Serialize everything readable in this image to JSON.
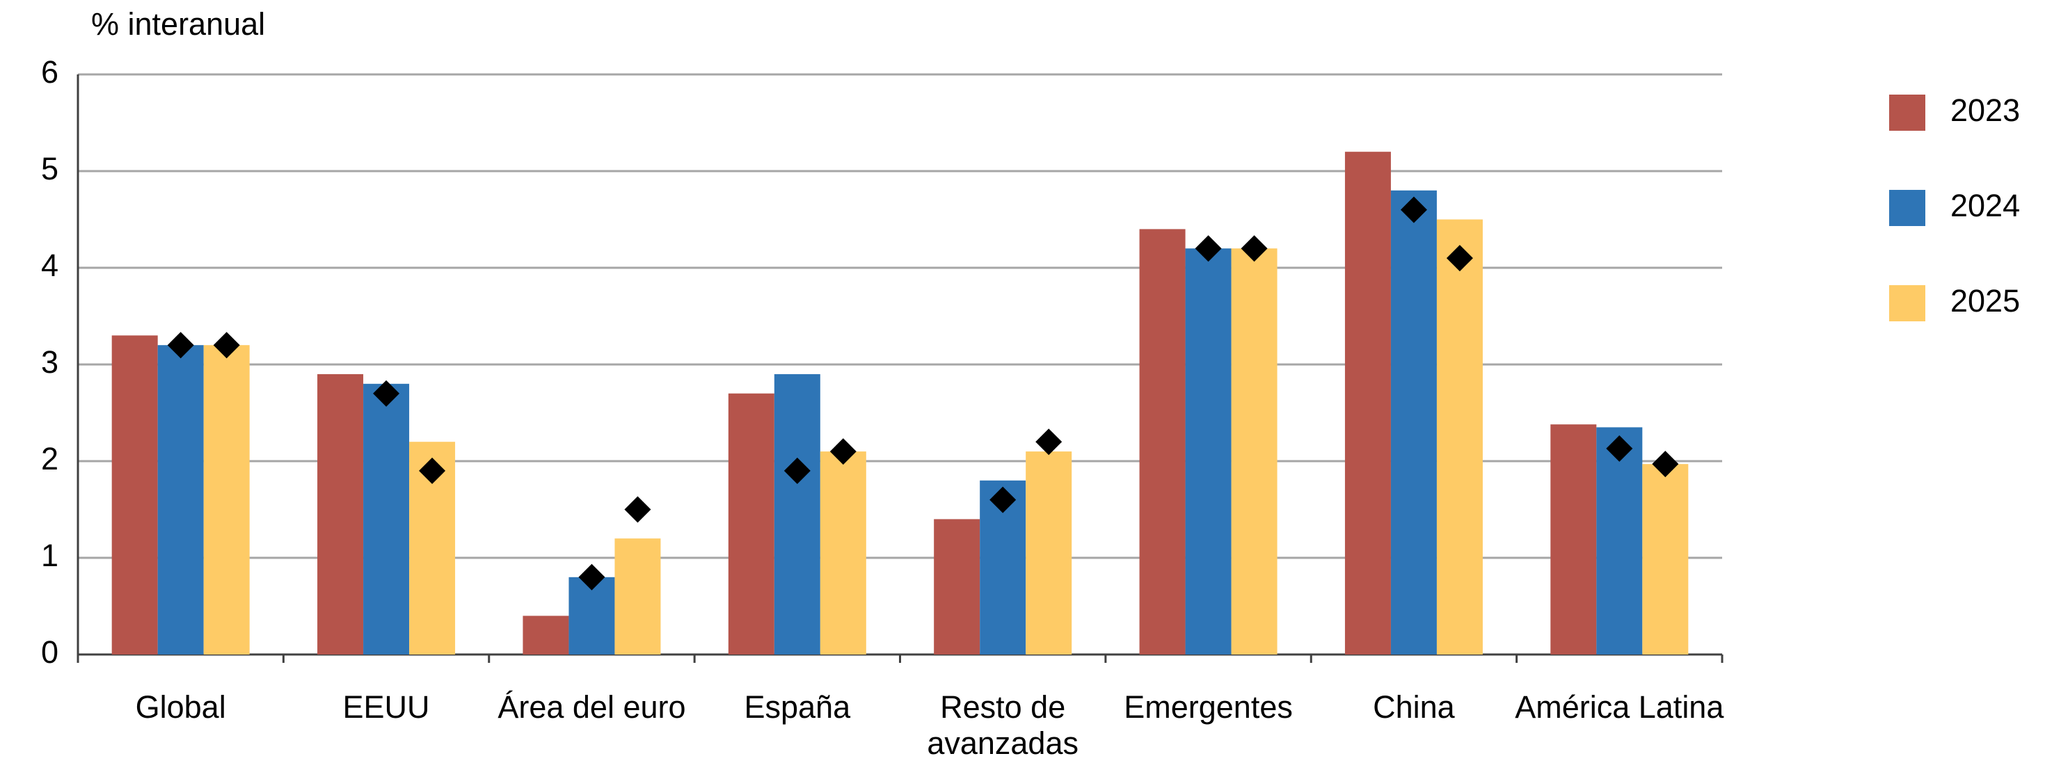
{
  "chart_data": {
    "type": "bar",
    "y_label": "% interanual",
    "categories": [
      "Global",
      "EEUU",
      "Área del euro",
      "España",
      "Resto de avanzadas",
      "Emergentes",
      "China",
      "América Latina"
    ],
    "series": [
      {
        "name": "2023",
        "color": "#b5544b",
        "values": [
          3.3,
          2.9,
          0.4,
          2.7,
          1.4,
          4.4,
          5.2,
          2.38
        ],
        "markers": [
          null,
          null,
          null,
          null,
          null,
          null,
          null,
          null
        ]
      },
      {
        "name": "2024",
        "color": "#2e75b6",
        "values": [
          3.2,
          2.8,
          0.8,
          2.9,
          1.8,
          4.2,
          4.8,
          2.35
        ],
        "markers": [
          3.2,
          2.7,
          0.8,
          1.9,
          1.6,
          4.2,
          4.6,
          2.13
        ]
      },
      {
        "name": "2025",
        "color": "#fecb66",
        "values": [
          3.2,
          2.2,
          1.2,
          2.1,
          2.1,
          4.2,
          4.5,
          1.97
        ],
        "markers": [
          3.2,
          1.9,
          1.5,
          2.1,
          2.2,
          4.2,
          4.1,
          1.97
        ]
      }
    ],
    "marker_color": "#000000",
    "ylim": [
      0,
      6
    ],
    "yticks": [
      0,
      1,
      2,
      3,
      4,
      5,
      6
    ],
    "grid": true,
    "legend": "right"
  }
}
